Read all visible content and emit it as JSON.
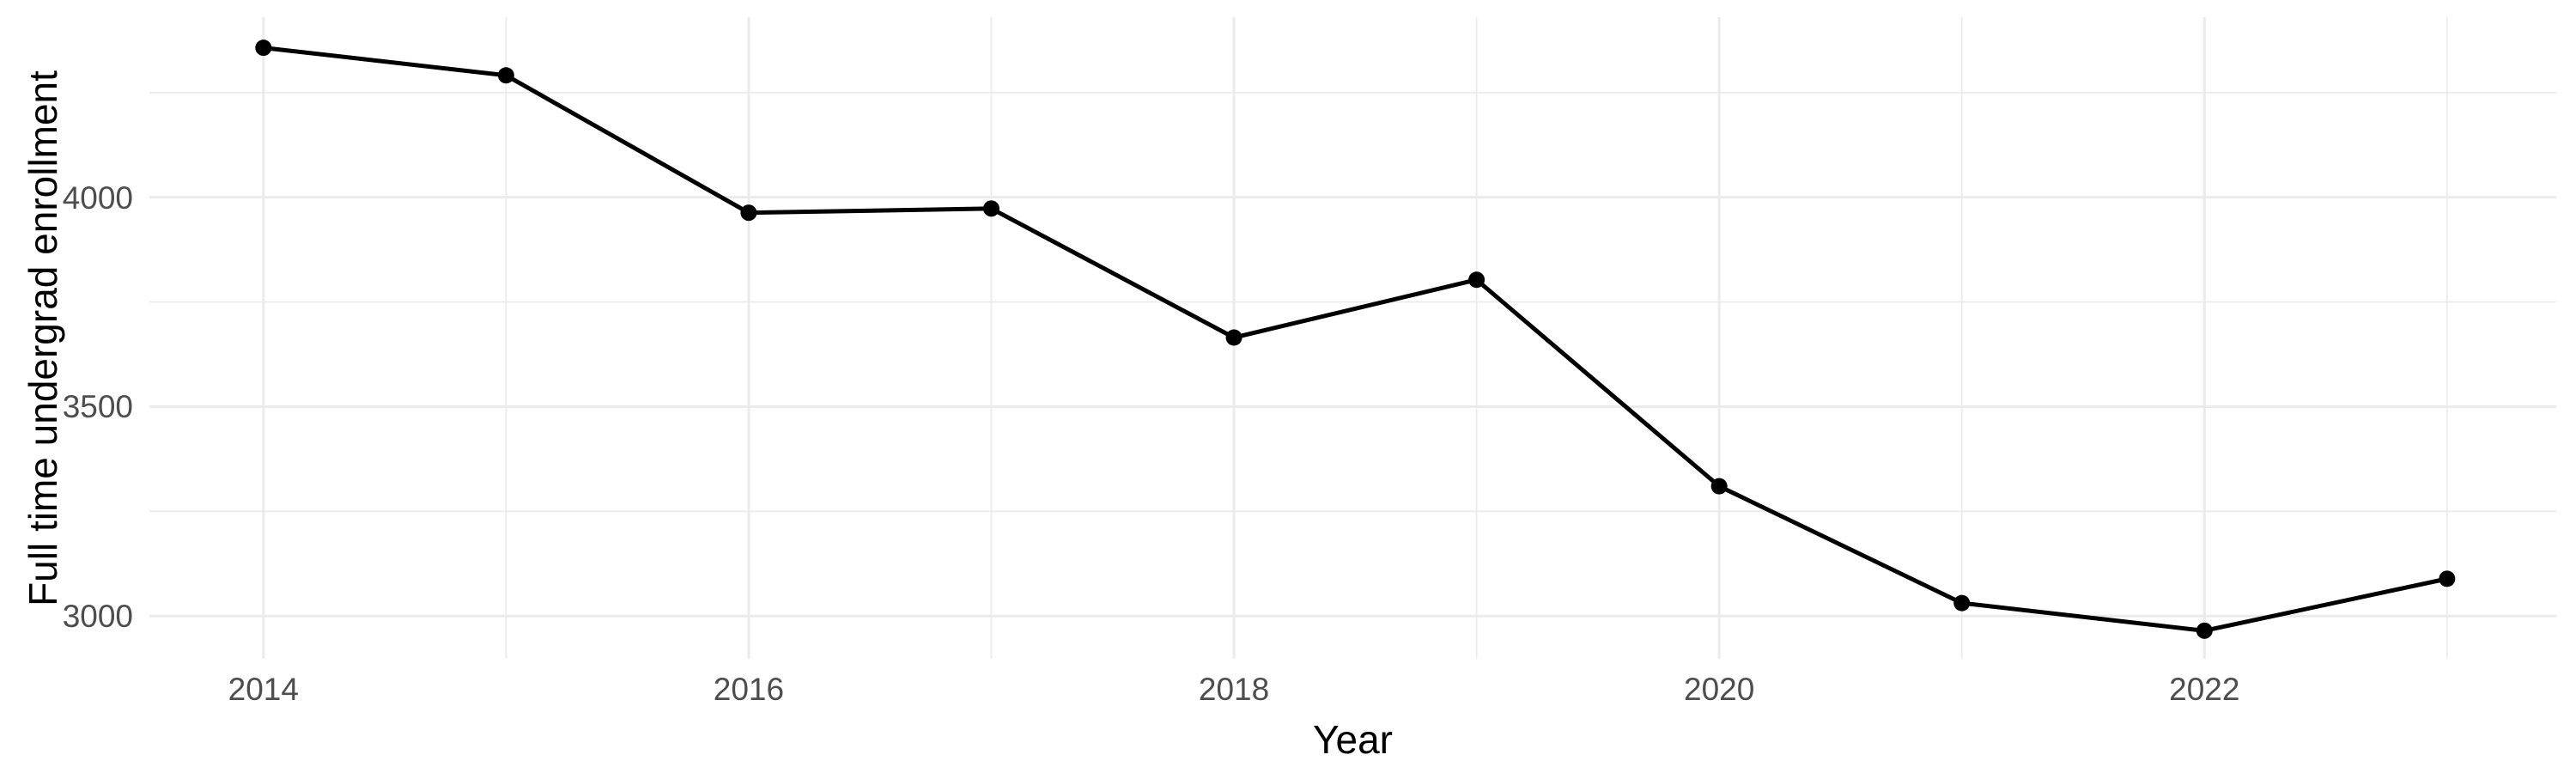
{
  "chart_data": {
    "type": "line",
    "title": "",
    "xlabel": "Year",
    "ylabel": "Full time undergrad enrollment",
    "x": [
      2014,
      2015,
      2016,
      2017,
      2018,
      2019,
      2020,
      2021,
      2022,
      2023
    ],
    "series": [
      {
        "name": "Full time undergrad enrollment",
        "values": [
          4357,
          4291,
          3963,
          3973,
          3665,
          3803,
          3310,
          3031,
          2965,
          3089
        ]
      }
    ],
    "x_ticks": {
      "values": [
        2014,
        2016,
        2018,
        2020,
        2022
      ],
      "labels": [
        "2014",
        "2016",
        "2018",
        "2020",
        "2022"
      ]
    },
    "x_minor_gridlines": [
      2015,
      2017,
      2019,
      2021,
      2023
    ],
    "y_ticks": {
      "values": [
        4000,
        3500,
        3000
      ],
      "labels": [
        "4000",
        "3500",
        "3000"
      ]
    },
    "y_minor_gridlines": [
      4250,
      3750,
      3250
    ],
    "xlim": [
      2013.53,
      2023.45
    ],
    "ylim": [
      2898,
      4430
    ],
    "grid": true,
    "legend": false,
    "marker": "point",
    "colors": {
      "line": "#000000",
      "point": "#000000",
      "grid_major": "#ebebeb",
      "grid_minor": "#ebebeb",
      "tick_label": "#4d4d4d",
      "axis_title": "#000000",
      "background": "#ffffff"
    }
  }
}
